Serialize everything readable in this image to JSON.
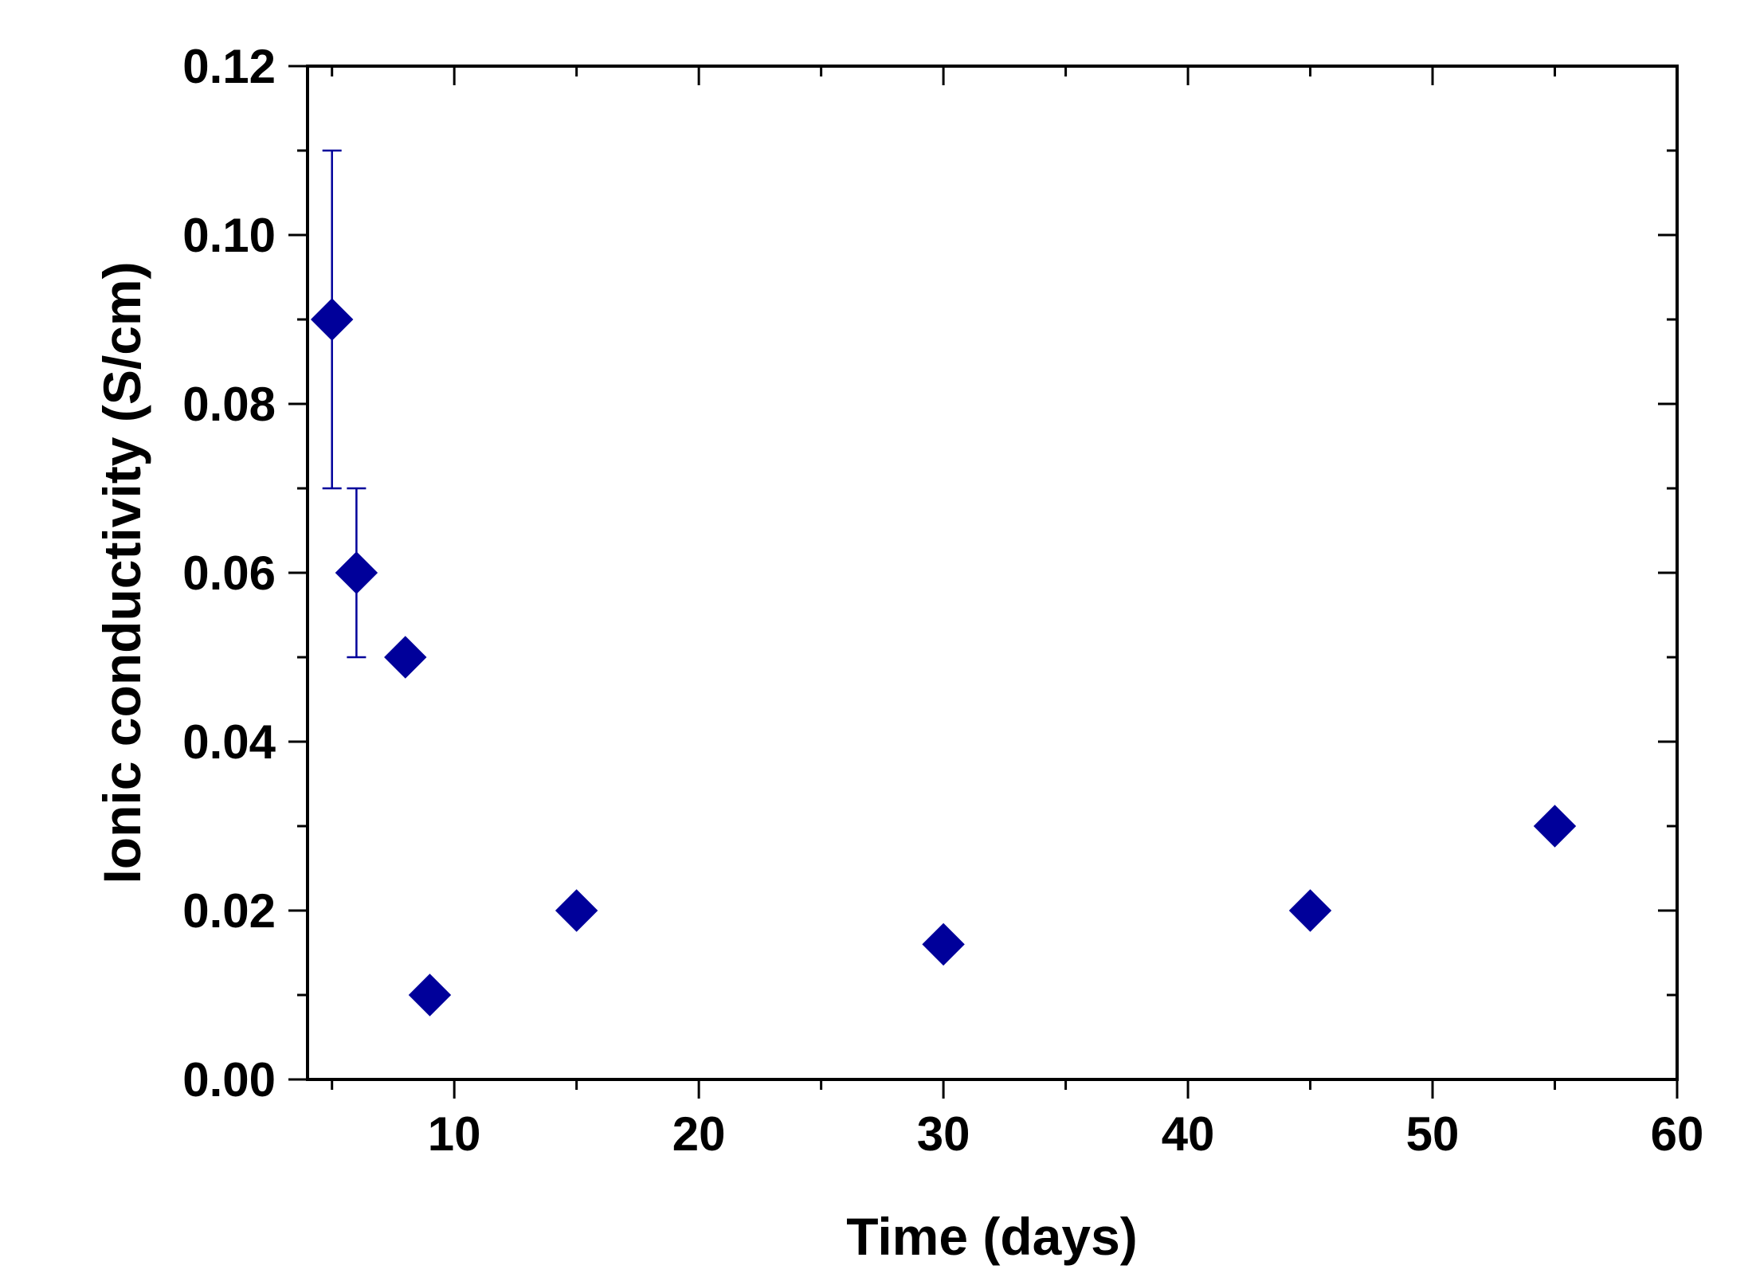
{
  "chart_data": {
    "type": "scatter",
    "title": "",
    "xlabel": "Time (days)",
    "ylabel": "Ionic conductivity (S/cm)",
    "xlim": [
      4,
      60
    ],
    "ylim": [
      0,
      0.12
    ],
    "x_ticks": [
      10,
      20,
      30,
      40,
      50,
      60
    ],
    "y_ticks": [
      0.0,
      0.02,
      0.04,
      0.06,
      0.08,
      0.1,
      0.12
    ],
    "x_tick_labels": [
      "10",
      "20",
      "30",
      "40",
      "50",
      "60"
    ],
    "y_tick_labels": [
      "0.00",
      "0.02",
      "0.04",
      "0.06",
      "0.08",
      "0.10",
      "0.12"
    ],
    "grid": false,
    "legend": "none",
    "marker": "diamond",
    "color": "#00009a",
    "series": [
      {
        "x": [
          5,
          6,
          8,
          9,
          15,
          30,
          45,
          55
        ],
        "y": [
          0.09,
          0.06,
          0.05,
          0.01,
          0.02,
          0.016,
          0.02,
          0.03
        ],
        "yerr": [
          0.02,
          0.01,
          null,
          null,
          null,
          null,
          null,
          null
        ]
      }
    ]
  }
}
